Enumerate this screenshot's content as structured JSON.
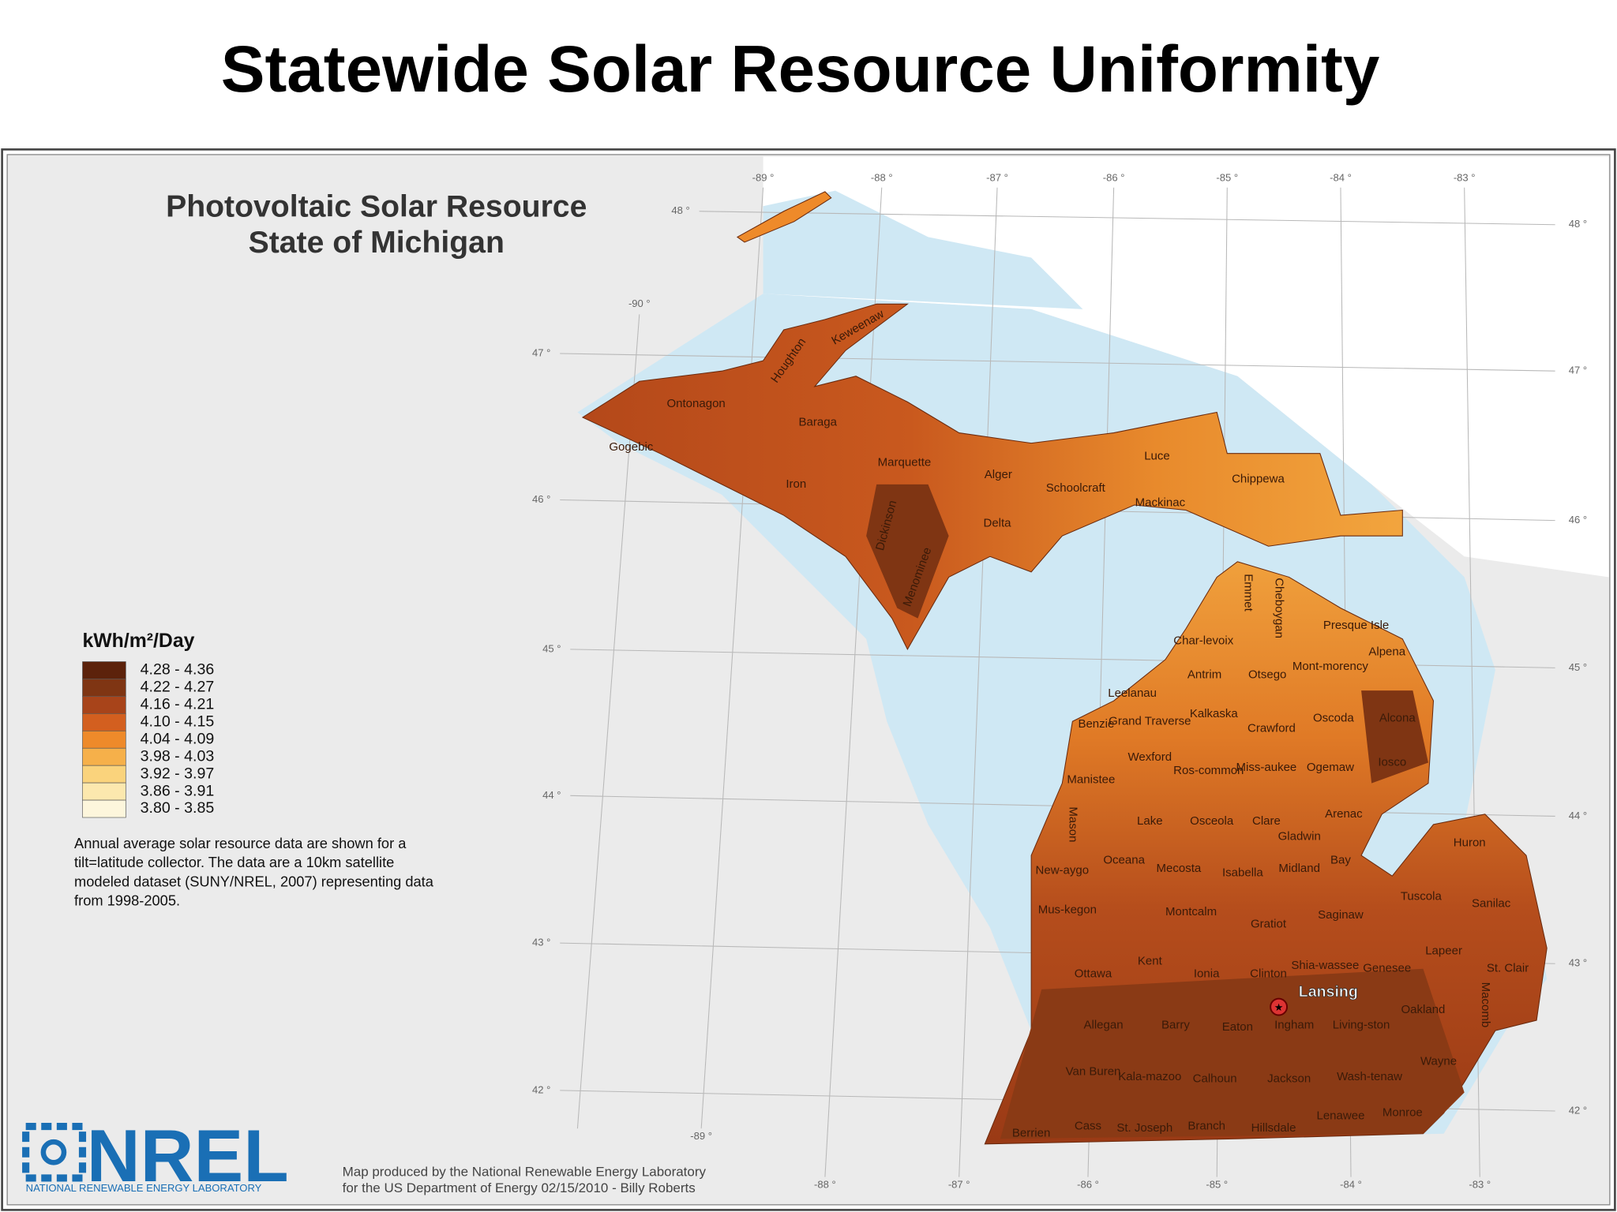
{
  "header": {
    "title": "Statewide Solar Resource Uniformity"
  },
  "map": {
    "title_lines": [
      "Photovoltaic Solar Resource",
      "State of Michigan"
    ],
    "legend": {
      "title": "kWh/m²/Day",
      "items": [
        {
          "label": "4.28 - 4.36",
          "color": "#5c220b"
        },
        {
          "label": "4.22 - 4.27",
          "color": "#7f3513"
        },
        {
          "label": "4.16 - 4.21",
          "color": "#a8441a"
        },
        {
          "label": "4.10 - 4.15",
          "color": "#d35f1f"
        },
        {
          "label": "4.04 - 4.09",
          "color": "#ee8a2a"
        },
        {
          "label": "3.98 - 4.03",
          "color": "#f6b04a"
        },
        {
          "label": "3.92 - 3.97",
          "color": "#fad37c"
        },
        {
          "label": "3.86 - 3.91",
          "color": "#fce8ae"
        },
        {
          "label": "3.80 - 3.85",
          "color": "#fdf6dc"
        }
      ]
    },
    "note_lines": [
      "Annual average solar resource data are shown for a",
      "tilt=latitude collector. The data are a 10km satellite",
      "modeled dataset (SUNY/NREL, 2007) representing data",
      "from 1998-2005."
    ],
    "credit_lines": [
      "Map produced by the National Renewable Energy Laboratory",
      "for the US Department of Energy 02/15/2010 - Billy Roberts"
    ],
    "logo": {
      "name": "NREL",
      "subtitle": "NATIONAL RENEWABLE ENERGY LABORATORY"
    },
    "city": "Lansing",
    "top_longitude_labels": [
      "-89 °",
      "-88 °",
      "-87 °",
      "-86 °",
      "-85 °",
      "-84 °",
      "-83 °"
    ],
    "bottom_longitude_labels": [
      "-88 °",
      "-87 °",
      "-86 °",
      "-85 °",
      "-84 °",
      "-83 °"
    ],
    "inner_longitude_labels": [
      "-90 °",
      "-89 °"
    ],
    "right_latitude_labels": [
      "48 °",
      "47 °",
      "46 °",
      "45 °",
      "44 °",
      "43 °",
      "42 °"
    ],
    "left_latitude_labels": [
      "48 °",
      "47 °",
      "46 °",
      "45 °",
      "44 °",
      "43 °",
      "42 °"
    ],
    "counties": [
      "Ontonagon",
      "Gogebic",
      "Houghton",
      "Keweenaw",
      "Baraga",
      "Iron",
      "Marquette",
      "Alger",
      "Schoolcraft",
      "Luce",
      "Chippewa",
      "Mackinac",
      "Delta",
      "Dickinson",
      "Menominee",
      "Char-levoix",
      "Emmet",
      "Cheboygan",
      "Presque Isle",
      "Antrim",
      "Otsego",
      "Mont-morency",
      "Alpena",
      "Leelanau",
      "Benzie",
      "Grand Traverse",
      "Kalkaska",
      "Crawford",
      "Oscoda",
      "Alcona",
      "Manistee",
      "Wexford",
      "Ros-common",
      "Miss-aukee",
      "Ogemaw",
      "Iosco",
      "Mason",
      "Lake",
      "Osceola",
      "Clare",
      "Gladwin",
      "Arenac",
      "Huron",
      "Oceana",
      "New-aygo",
      "Mecosta",
      "Isabella",
      "Midland",
      "Bay",
      "Tuscola",
      "Sanilac",
      "Mus-kegon",
      "Montcalm",
      "Gratiot",
      "Saginaw",
      "Lapeer",
      "Ottawa",
      "Kent",
      "Ionia",
      "Clinton",
      "Shia-wassee",
      "Genesee",
      "St. Clair",
      "Oakland",
      "Macomb",
      "Allegan",
      "Barry",
      "Eaton",
      "Ingham",
      "Living-ston",
      "Van Buren",
      "Kala-mazoo",
      "Calhoun",
      "Jackson",
      "Wash-tenaw",
      "Wayne",
      "Berrien",
      "Cass",
      "St. Joseph",
      "Branch",
      "Hillsdale",
      "Lenawee",
      "Monroe"
    ]
  }
}
